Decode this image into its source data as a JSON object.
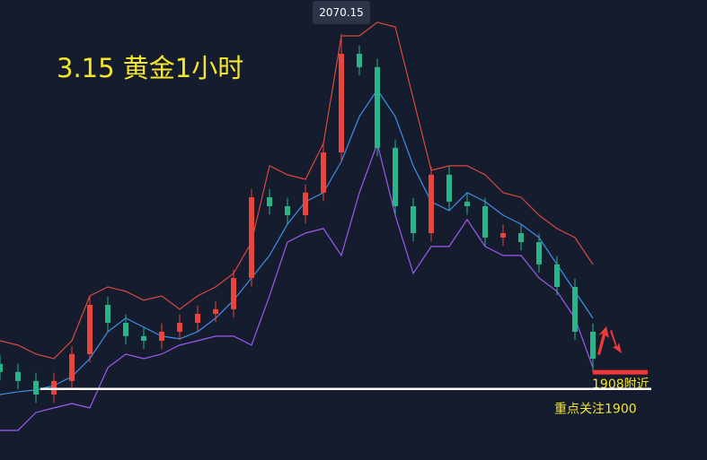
{
  "chart_data": {
    "type": "candlestick",
    "title": "3.15  黄金1小时",
    "categories": [
      null,
      null,
      null,
      null,
      null,
      null,
      null,
      null,
      null,
      null,
      null,
      null,
      null,
      null,
      null,
      null,
      null,
      null,
      null,
      null,
      null,
      null,
      null,
      null,
      null,
      null,
      null,
      null,
      null,
      null,
      null,
      null,
      null,
      null
    ],
    "ylim": [
      1865.9,
      2086.5
    ],
    "up_color": "#e8453c",
    "down_color": "#2bb38a",
    "candles": {
      "open": [
        1912.0,
        1908.1,
        1903.8,
        1897.3,
        1903.8,
        1916.7,
        1940.3,
        1931.7,
        1925.3,
        1923.1,
        1927.4,
        1931.7,
        1936.0,
        1938.2,
        1953.2,
        1991.9,
        1987.6,
        1983.3,
        1994.1,
        2013.4,
        2060.7,
        2054.3,
        2015.6,
        1987.6,
        1974.7,
        2002.7,
        1989.8,
        1987.6,
        1972.6,
        1974.7,
        1970.4,
        1959.7,
        1948.9,
        1927.4
      ],
      "high": [
        1916.0,
        1912.1,
        1907.8,
        1907.8,
        1920.7,
        1944.3,
        1944.3,
        1935.7,
        1929.3,
        1931.4,
        1935.7,
        1940.0,
        1942.2,
        1957.2,
        1995.9,
        1995.9,
        1991.6,
        1998.1,
        2017.4,
        2070.15,
        2064.7,
        2058.3,
        2019.6,
        1991.6,
        2006.7,
        2006.7,
        1993.8,
        1991.6,
        1978.7,
        1978.7,
        1974.4,
        1963.7,
        1952.9,
        1931.4
      ],
      "low": [
        1904.1,
        1899.8,
        1893.3,
        1893.3,
        1899.8,
        1912.7,
        1927.7,
        1921.3,
        1919.1,
        1919.1,
        1923.4,
        1927.7,
        1932.0,
        1934.2,
        1949.2,
        1983.6,
        1979.3,
        1979.3,
        1990.1,
        2009.4,
        2050.3,
        2011.6,
        1983.6,
        1970.7,
        1970.7,
        1985.8,
        1983.6,
        1968.6,
        1968.6,
        1966.4,
        1955.7,
        1944.9,
        1923.4,
        1908
      ],
      "close": [
        1908.1,
        1903.8,
        1897.3,
        1903.8,
        1916.7,
        1940.3,
        1931.7,
        1925.3,
        1923.1,
        1927.4,
        1931.7,
        1936.0,
        1938.2,
        1953.2,
        1991.9,
        1987.6,
        1983.3,
        1994.1,
        2013.4,
        2060.7,
        2054.3,
        2015.6,
        1987.6,
        1974.7,
        2002.7,
        1989.8,
        1987.6,
        1972.6,
        1974.7,
        1970.4,
        1959.7,
        1948.9,
        1927.4,
        1914.5
      ]
    },
    "series": [
      {
        "color": "#d9493f",
        "values": [
          1923.1,
          1921.0,
          1916.7,
          1914.5,
          1923.1,
          1944.6,
          1948.9,
          1946.8,
          1942.5,
          1944.6,
          1938.2,
          1944.6,
          1948.9,
          1955.4,
          1970.4,
          2007.0,
          2002.7,
          2000.5,
          2017.7,
          2069.3,
          2069.3,
          2075.8,
          2073.6,
          2039.2,
          2004.8,
          2007.0,
          2007.0,
          2002.7,
          1994.1,
          1991.9,
          1983.3,
          1976.9,
          1972.6,
          1959.7
        ]
      },
      {
        "color": "#3f8ee8",
        "values": [
          1897.3,
          1898.6,
          1899.5,
          1901.6,
          1905.9,
          1914.5,
          1927.4,
          1933.9,
          1929.6,
          1925.3,
          1924.0,
          1927.4,
          1933.9,
          1942.5,
          1953.2,
          1964.0,
          1979.0,
          1989.8,
          1994.1,
          2009.1,
          2030.6,
          2043.5,
          2030.6,
          2007.0,
          1989.8,
          1985.5,
          1994.1,
          1989.8,
          1983.3,
          1979.0,
          1972.6,
          1959.7,
          1946.8,
          1933.9
        ]
      },
      {
        "color": "#9b5bf0",
        "values": [
          1880.1,
          1880.1,
          1888.7,
          1890.9,
          1893.0,
          1890.9,
          1910.2,
          1916.7,
          1914.5,
          1916.7,
          1921.0,
          1923.1,
          1925.3,
          1925.3,
          1921.0,
          1944.6,
          1970.4,
          1974.7,
          1976.9,
          1964.0,
          1994.1,
          2017.7,
          1983.3,
          1955.4,
          1968.3,
          1968.3,
          1981.2,
          1968.3,
          1964.0,
          1964.0,
          1953.2,
          1946.8,
          1933.9,
          1910.2
        ]
      }
    ],
    "reference_lines": [
      {
        "value": 1908,
        "label": "1908附近",
        "color": "#f03a3a"
      },
      {
        "value": 1900,
        "label": "重点关注1900",
        "color": "#ffffff"
      }
    ]
  }
}
